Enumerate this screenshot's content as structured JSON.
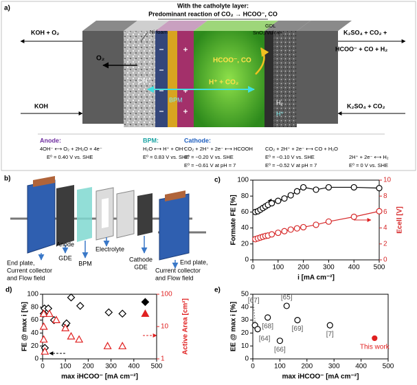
{
  "panel_a": {
    "label": "a)",
    "header": [
      "With the catholyte layer:",
      "Predominant reaction of CO₂ → HCOO⁻, CO"
    ],
    "inlet_left_top": "KOH + O₂",
    "ni_foam": "Ni foam",
    "gdl": "GDL",
    "catalyst": "SnO₂/Vulcan",
    "outlet_right_top": [
      "K₂SO₄ + CO₂ +",
      "HCOO⁻ + CO + H₂"
    ],
    "o2": "O₂",
    "oh": "OH⁻",
    "bpm": "BPM",
    "products": "HCOO⁻, CO",
    "reactants": "H⁺ + CO₂",
    "h2": "H₂",
    "hplus": "H⁺",
    "inlet_left_bottom": "KOH",
    "inlet_right_bottom": "K₂SO₄ + CO₂",
    "anode": {
      "title": "Anode:",
      "lines": [
        "4OH⁻ ⟷ O₂ + 2H₂O + 4e⁻",
        "E⁰ = 0.40 V vs. SHE"
      ]
    },
    "bpm_reaction": {
      "title": "BPM:",
      "lines": [
        "H₂O ⟷ H⁺ + OH⁻",
        "E⁰ = 0.83 V vs. SHE"
      ]
    },
    "cathode": {
      "title": "Cathode:",
      "columns": [
        [
          "CO₂ + 2H⁺ + 2e⁻ ⟷ HCOOH",
          "E⁰ = −0.20 V vs. SHE",
          "E⁰ = −0.61 V at pH = 7"
        ],
        [
          "CO₂ + 2H⁺ + 2e⁻ ⟷ CO + H₂O",
          "E⁰ = −0.10 V vs. SHE",
          "E⁰ = −0.52 V at pH = 7"
        ],
        [
          "2H⁺ + 2e⁻ ⟷ H₂",
          "E⁰ = 0 V vs. SHE"
        ]
      ]
    }
  },
  "panel_b": {
    "label": "b)",
    "end_plate_left": [
      "End plate,",
      "Current collector",
      "and Flow field"
    ],
    "anode_gde": [
      "Anode",
      "GDE"
    ],
    "bpm": "BPM",
    "electrolyte": "Electrolyte",
    "cathode_gde": [
      "Cathode",
      "GDE"
    ],
    "end_plate_right": [
      "End plate,",
      "Current collector",
      "and Flow field"
    ]
  },
  "chart_data": [
    {
      "label": "c)",
      "type": "line",
      "xlabel": "i [mA cm⁻²]",
      "ylabel": "Formate FE [%]",
      "y2label": "Ecell [V]",
      "x": [
        10,
        20,
        30,
        40,
        50,
        60,
        75,
        100,
        125,
        150,
        175,
        200,
        250,
        300,
        400,
        500
      ],
      "series": [
        {
          "color": "#000000",
          "marker": "circle",
          "filled": false,
          "values": [
            60,
            61,
            63,
            65,
            67,
            69,
            71,
            74,
            77,
            81,
            86,
            91,
            88,
            91,
            91,
            90
          ]
        },
        {
          "color": "#d62728",
          "marker": "circle",
          "filled": false,
          "axis": "y2",
          "values": [
            2.6,
            2.7,
            2.8,
            2.9,
            3.0,
            3.05,
            3.2,
            3.4,
            3.6,
            3.8,
            3.95,
            4.1,
            4.4,
            4.8,
            5.4,
            6.1
          ]
        }
      ],
      "xlim": [
        0,
        500
      ],
      "xticks": [
        0,
        100,
        200,
        300,
        400,
        500
      ],
      "ylim": [
        0,
        100
      ],
      "yticks": [
        0,
        20,
        40,
        60,
        80,
        100
      ],
      "y2lim": [
        0,
        10
      ],
      "y2ticks": [
        0,
        2,
        4,
        6,
        8,
        10
      ],
      "y2color": "#d62728"
    },
    {
      "label": "d)",
      "type": "scatter",
      "xlabel": "max iHCOO⁻ [mA cm⁻²]",
      "ylabel": "FE @ max i [%]",
      "y2label": "Active Area [cm²]",
      "series": [
        {
          "color": "#000000",
          "marker": "diamond",
          "filled": false,
          "x": [
            5,
            8,
            10,
            25,
            50,
            100,
            105,
            125,
            165,
            290,
            350
          ],
          "values": [
            70,
            78,
            17,
            78,
            60,
            52,
            55,
            95,
            82,
            72,
            70
          ]
        },
        {
          "color": "#000000",
          "marker": "diamond",
          "filled": true,
          "x": [
            450
          ],
          "values": [
            88
          ]
        },
        {
          "color": "#e02020",
          "marker": "triangle",
          "filled": false,
          "axis": "y2",
          "x": [
            5,
            5,
            5,
            10,
            30,
            60,
            100,
            125,
            160,
            285,
            350
          ],
          "values": [
            25,
            10,
            4,
            1.7,
            25,
            16,
            9,
            5,
            4,
            2.5,
            2.5
          ]
        },
        {
          "color": "#e02020",
          "marker": "triangle",
          "filled": true,
          "axis": "y2",
          "x": [
            450
          ],
          "values": [
            25
          ]
        }
      ],
      "xlim": [
        0,
        500
      ],
      "xticks": [
        0,
        100,
        200,
        300,
        400,
        500
      ],
      "ylim": [
        0,
        100
      ],
      "yticks": [
        0,
        20,
        40,
        60,
        80,
        100
      ],
      "y2lim": [
        1,
        100
      ],
      "y2scale": "log",
      "y2ticks": [
        1,
        10,
        100
      ],
      "y2color": "#e02020"
    },
    {
      "label": "e)",
      "type": "scatter",
      "xlabel": "max iHCOO⁻ [mA cm⁻²]",
      "ylabel": "EE @ max i [%]",
      "series": [
        {
          "color": "#000000",
          "marker": "circle",
          "filled": false,
          "x": [
            8,
            18,
            55,
            100,
            125,
            165,
            285
          ],
          "values": [
            26,
            23,
            32,
            14,
            41,
            30,
            26
          ],
          "point_labels": [
            "[67]",
            "[64]",
            "[68]",
            "[66]",
            "[65]",
            "[69]",
            "[7]"
          ]
        },
        {
          "color": "#e02020",
          "marker": "circle",
          "filled": true,
          "x": [
            450
          ],
          "values": [
            16
          ],
          "point_labels": [
            "This work"
          ]
        }
      ],
      "xlim": [
        0,
        500
      ],
      "xticks": [
        0,
        100,
        200,
        300,
        400,
        500
      ],
      "ylim": [
        0,
        50
      ],
      "yticks": [
        0,
        10,
        20,
        30,
        40,
        50
      ]
    }
  ]
}
